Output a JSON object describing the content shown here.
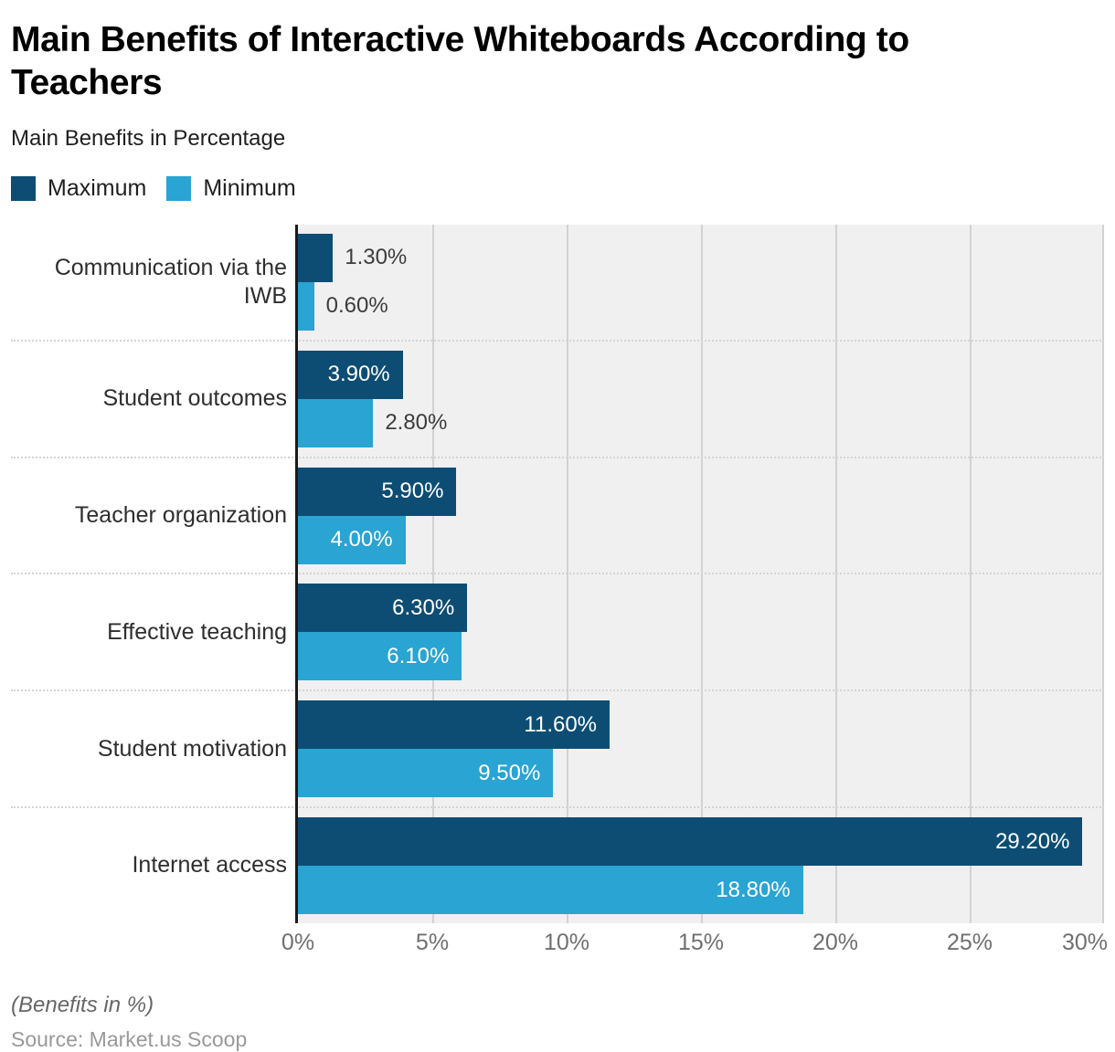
{
  "header": {
    "title": "Main Benefits of Interactive Whiteboards According to Teachers",
    "subtitle": "Main Benefits in Percentage"
  },
  "legend": [
    {
      "label": "Maximum",
      "color": "#0d4d73"
    },
    {
      "label": "Minimum",
      "color": "#29a4d3"
    }
  ],
  "colors": {
    "maximum_bar": "#0d4d73",
    "minimum_bar": "#29a4d3",
    "plot_background": "#f0f0f0",
    "gridline": "#d2d2d2",
    "axis_line": "#1a1a1a",
    "inside_label": "#ffffff",
    "outside_label": "#3c3c3c"
  },
  "chart_data": {
    "type": "bar",
    "orientation": "horizontal",
    "title": "Main Benefits of Interactive Whiteboards According to Teachers",
    "subtitle": "Main Benefits in Percentage",
    "categories": [
      "Communication via the IWB",
      "Student outcomes",
      "Teacher organization",
      "Effective teaching",
      "Student motivation",
      "Internet access"
    ],
    "series": [
      {
        "name": "Maximum",
        "color": "#0d4d73",
        "values": [
          1.3,
          3.9,
          5.9,
          6.3,
          11.6,
          29.2
        ],
        "labels": [
          "1.30%",
          "3.90%",
          "5.90%",
          "6.30%",
          "11.60%",
          "29.20%"
        ]
      },
      {
        "name": "Minimum",
        "color": "#29a4d3",
        "values": [
          0.6,
          2.8,
          4.0,
          6.1,
          9.5,
          18.8
        ],
        "labels": [
          "0.60%",
          "2.80%",
          "4.00%",
          "6.10%",
          "9.50%",
          "18.80%"
        ]
      }
    ],
    "xlim": [
      0,
      30
    ],
    "xticks": [
      "0%",
      "5%",
      "10%",
      "15%",
      "20%",
      "25%",
      "30%"
    ],
    "grid": true,
    "legend_position": "top-left"
  },
  "footer": {
    "note": "(Benefits in %)",
    "source": "Source: Market.us Scoop"
  }
}
